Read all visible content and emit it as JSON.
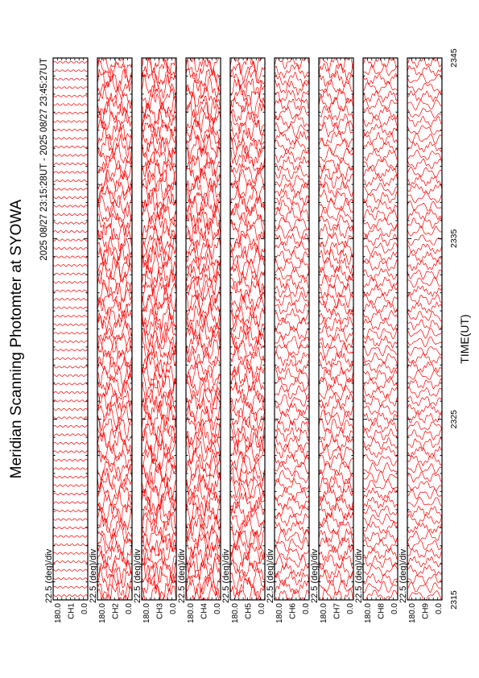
{
  "chart_data": {
    "type": "line",
    "title": "Meridian Scanning Photomter at SYOWA",
    "subtitle": "2025 08/27 23:15:28UT - 2025 08/27 23:45:27UT",
    "xlabel": "TIME(UT)",
    "xlim": [
      2315,
      2345
    ],
    "xticks": [
      "2315",
      "2325",
      "2335",
      "2345"
    ],
    "trace_color": "#ff0000",
    "panels": [
      {
        "id": "ch1",
        "channel_label": "CH1",
        "scale_label": "22.5 (deg)/div",
        "y_top": "180.0",
        "y_bottom": "0.0",
        "activity": 0.02
      },
      {
        "id": "ch2",
        "channel_label": "CH2",
        "scale_label": "22.5 (deg)/div",
        "y_top": "180.0",
        "y_bottom": "0.0",
        "activity": 0.85
      },
      {
        "id": "ch3",
        "channel_label": "CH3",
        "scale_label": "22.5 (deg)/div",
        "y_top": "180.0",
        "y_bottom": "0.0",
        "activity": 0.95
      },
      {
        "id": "ch4",
        "channel_label": "CH4",
        "scale_label": "22.5 (deg)/div",
        "y_top": "180.0",
        "y_bottom": "0.0",
        "activity": 0.9
      },
      {
        "id": "ch5",
        "channel_label": "CH5",
        "scale_label": "22.5 (deg)/div",
        "y_top": "180.0",
        "y_bottom": "0.0",
        "activity": 0.8
      },
      {
        "id": "ch6",
        "channel_label": "CH6",
        "scale_label": "22.5 (deg)/div",
        "y_top": "180.0",
        "y_bottom": "0.0",
        "activity": 0.45
      },
      {
        "id": "ch7",
        "channel_label": "CH7",
        "scale_label": "22.5 (deg)/div",
        "y_top": "180.0",
        "y_bottom": "0.0",
        "activity": 0.55
      },
      {
        "id": "ch8",
        "channel_label": "CH8",
        "scale_label": "22.5 (deg)/div",
        "y_top": "180.0",
        "y_bottom": "0.0",
        "activity": 0.35
      },
      {
        "id": "ch9",
        "channel_label": "CH9",
        "scale_label": "22.5 (deg)/div",
        "y_top": "180.0",
        "y_bottom": "0.0",
        "activity": 0.3
      }
    ]
  }
}
